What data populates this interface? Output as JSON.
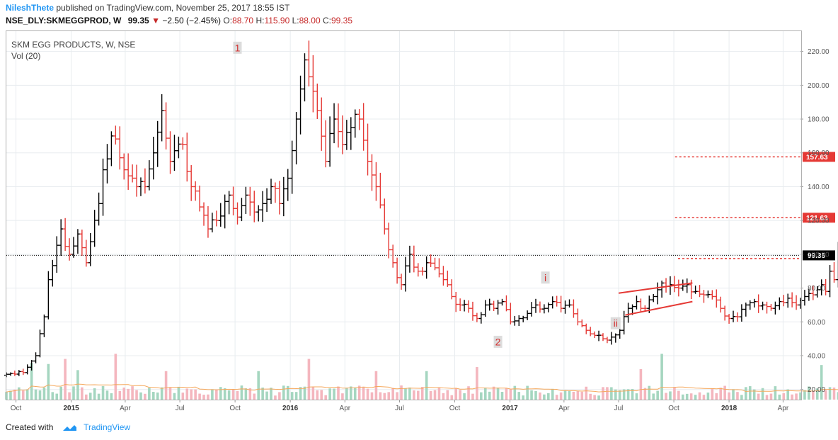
{
  "header": {
    "author": "NileshThete",
    "published_text": " published on TradingView.com, November 25, 2017 18:55 IST",
    "symbol": "NSE_DLY:SKMEGGPROD, W",
    "price": "99.35",
    "change": "−2.50 (−2.45%)",
    "open_label": "O:",
    "open": "88.70",
    "high_label": "H:",
    "high": "115.90",
    "low_label": "L:",
    "low": "88.00",
    "close_label": "C:",
    "close": "99.35"
  },
  "legend": {
    "title": "SKM EGG PRODUCTS, W, NSE",
    "volume": "Vol (20)"
  },
  "footer": {
    "created_with": "Created with",
    "brand": "TradingView"
  },
  "colors": {
    "up": "#000000",
    "down": "#e53935",
    "vol_up": "#a5d6c0",
    "vol_down": "#f4b6be",
    "grid": "#e8ecef",
    "level_line": "#e53935",
    "label_bg": "#e53935",
    "price_label_bg": "#000000"
  },
  "chart_data": {
    "type": "ohlc",
    "interval": "weekly",
    "y_range": [
      14,
      232
    ],
    "y_ticks": [
      "20.00",
      "40.00",
      "60.00",
      "80.00",
      "100.00",
      "120.00",
      "140.00",
      "160.00",
      "180.00",
      "200.00",
      "220.00"
    ],
    "x_range": [
      "2014-09-15",
      "2018-04-30"
    ],
    "x_ticks": [
      {
        "label": "Oct",
        "date": "2014-10-01",
        "bold": false
      },
      {
        "label": "2015",
        "date": "2015-01-01",
        "bold": true
      },
      {
        "label": "Apr",
        "date": "2015-04-01",
        "bold": false
      },
      {
        "label": "Jul",
        "date": "2015-07-01",
        "bold": false
      },
      {
        "label": "Oct",
        "date": "2015-10-01",
        "bold": false
      },
      {
        "label": "2016",
        "date": "2016-01-01",
        "bold": true
      },
      {
        "label": "Apr",
        "date": "2016-04-01",
        "bold": false
      },
      {
        "label": "Jul",
        "date": "2016-07-01",
        "bold": false
      },
      {
        "label": "Oct",
        "date": "2016-10-01",
        "bold": false
      },
      {
        "label": "2017",
        "date": "2017-01-01",
        "bold": true
      },
      {
        "label": "Apr",
        "date": "2017-04-01",
        "bold": false
      },
      {
        "label": "Jul",
        "date": "2017-07-01",
        "bold": false
      },
      {
        "label": "Oct",
        "date": "2017-10-01",
        "bold": false
      },
      {
        "label": "2018",
        "date": "2018-01-01",
        "bold": true
      },
      {
        "label": "Apr",
        "date": "2018-04-01",
        "bold": false
      }
    ],
    "first_bar_date": "2014-09-15",
    "anchors": [
      {
        "w": 0,
        "c": 29
      },
      {
        "w": 4,
        "c": 30
      },
      {
        "w": 7,
        "c": 40
      },
      {
        "w": 9,
        "c": 63
      },
      {
        "w": 10,
        "c": 85
      },
      {
        "w": 13,
        "c": 115
      },
      {
        "w": 15,
        "c": 100
      },
      {
        "w": 17,
        "c": 112
      },
      {
        "w": 19,
        "c": 95
      },
      {
        "w": 22,
        "c": 130
      },
      {
        "w": 23,
        "c": 150
      },
      {
        "w": 25,
        "c": 170
      },
      {
        "w": 28,
        "c": 150
      },
      {
        "w": 31,
        "c": 140
      },
      {
        "w": 33,
        "c": 140
      },
      {
        "w": 35,
        "c": 160
      },
      {
        "w": 37,
        "c": 185
      },
      {
        "w": 39,
        "c": 155
      },
      {
        "w": 42,
        "c": 165
      },
      {
        "w": 44,
        "c": 140
      },
      {
        "w": 46,
        "c": 128
      },
      {
        "w": 48,
        "c": 115
      },
      {
        "w": 50,
        "c": 120
      },
      {
        "w": 53,
        "c": 135
      },
      {
        "w": 55,
        "c": 122
      },
      {
        "w": 57,
        "c": 135
      },
      {
        "w": 59,
        "c": 125
      },
      {
        "w": 61,
        "c": 130
      },
      {
        "w": 63,
        "c": 140
      },
      {
        "w": 65,
        "c": 130
      },
      {
        "w": 67,
        "c": 145
      },
      {
        "w": 69,
        "c": 180
      },
      {
        "w": 71,
        "c": 215
      },
      {
        "w": 72,
        "c": 205
      },
      {
        "w": 74,
        "c": 185
      },
      {
        "w": 76,
        "c": 155
      },
      {
        "w": 78,
        "c": 180
      },
      {
        "w": 80,
        "c": 165
      },
      {
        "w": 82,
        "c": 175
      },
      {
        "w": 84,
        "c": 180
      },
      {
        "w": 86,
        "c": 155
      },
      {
        "w": 88,
        "c": 140
      },
      {
        "w": 90,
        "c": 115
      },
      {
        "w": 92,
        "c": 95
      },
      {
        "w": 94,
        "c": 82
      },
      {
        "w": 96,
        "c": 100
      },
      {
        "w": 98,
        "c": 90
      },
      {
        "w": 100,
        "c": 95
      },
      {
        "w": 102,
        "c": 92
      },
      {
        "w": 104,
        "c": 85
      },
      {
        "w": 106,
        "c": 75
      },
      {
        "w": 108,
        "c": 70
      },
      {
        "w": 110,
        "c": 68
      },
      {
        "w": 112,
        "c": 62
      },
      {
        "w": 114,
        "c": 70
      },
      {
        "w": 116,
        "c": 68
      },
      {
        "w": 118,
        "c": 72
      },
      {
        "w": 120,
        "c": 60
      },
      {
        "w": 122,
        "c": 62
      },
      {
        "w": 124,
        "c": 65
      },
      {
        "w": 126,
        "c": 70
      },
      {
        "w": 128,
        "c": 68
      },
      {
        "w": 130,
        "c": 72
      },
      {
        "w": 132,
        "c": 68
      },
      {
        "w": 134,
        "c": 70
      },
      {
        "w": 136,
        "c": 60
      },
      {
        "w": 138,
        "c": 55
      },
      {
        "w": 140,
        "c": 52
      },
      {
        "w": 142,
        "c": 50
      },
      {
        "w": 144,
        "c": 51
      },
      {
        "w": 146,
        "c": 55
      },
      {
        "w": 148,
        "c": 68
      },
      {
        "w": 150,
        "c": 72
      },
      {
        "w": 152,
        "c": 68
      },
      {
        "w": 154,
        "c": 75
      },
      {
        "w": 156,
        "c": 83
      },
      {
        "w": 158,
        "c": 82
      },
      {
        "w": 160,
        "c": 80
      },
      {
        "w": 162,
        "c": 82
      },
      {
        "w": 164,
        "c": 78
      },
      {
        "w": 166,
        "c": 76
      },
      {
        "w": 168,
        "c": 75
      },
      {
        "w": 170,
        "c": 68
      },
      {
        "w": 172,
        "c": 62
      },
      {
        "w": 174,
        "c": 63
      },
      {
        "w": 176,
        "c": 70
      },
      {
        "w": 178,
        "c": 72
      },
      {
        "w": 180,
        "c": 70
      },
      {
        "w": 182,
        "c": 68
      },
      {
        "w": 184,
        "c": 72
      },
      {
        "w": 186,
        "c": 74
      },
      {
        "w": 188,
        "c": 70
      },
      {
        "w": 190,
        "c": 75
      },
      {
        "w": 192,
        "c": 76
      },
      {
        "w": 194,
        "c": 82
      },
      {
        "w": 195,
        "c": 78
      },
      {
        "w": 196,
        "c": 90
      },
      {
        "w": 197,
        "c": 85
      },
      {
        "w": 198,
        "c": 101.85
      },
      {
        "w": 199,
        "c": 99.35
      }
    ],
    "last_bar": {
      "open": 88.7,
      "high": 115.9,
      "low": 88.0,
      "close": 99.35
    },
    "volume_spikes": [
      {
        "w": 6,
        "v": 36
      },
      {
        "w": 10,
        "v": 35
      },
      {
        "w": 14,
        "v": 40
      },
      {
        "w": 17,
        "v": 29
      },
      {
        "w": 26,
        "v": 45
      },
      {
        "w": 38,
        "v": 28
      },
      {
        "w": 60,
        "v": 28
      },
      {
        "w": 72,
        "v": 40
      },
      {
        "w": 88,
        "v": 28
      },
      {
        "w": 100,
        "v": 28
      },
      {
        "w": 112,
        "v": 32
      },
      {
        "w": 151,
        "v": 30
      },
      {
        "w": 156,
        "v": 45
      },
      {
        "w": 194,
        "v": 34
      },
      {
        "w": 199,
        "v": 94
      }
    ],
    "volume_max": 94,
    "levels": [
      {
        "price": 157.63,
        "label": "157.63",
        "from_date": "2017-10-03"
      },
      {
        "price": 121.63,
        "label": "121.63",
        "from_date": "2017-10-03"
      },
      {
        "price": 97.5,
        "label": "",
        "from_date": "2017-10-08"
      }
    ],
    "last_price": {
      "price": 99.35,
      "label": "99.35"
    },
    "annotations": [
      {
        "text": "1",
        "date": "2015-10-05",
        "price": 222
      },
      {
        "text": "2",
        "date": "2016-12-12",
        "price": 48
      },
      {
        "text": "i",
        "date": "2017-03-01",
        "price": 86
      },
      {
        "text": "ii",
        "date": "2017-06-26",
        "price": 59
      }
    ],
    "triangle": {
      "upper": [
        {
          "date": "2017-07-01",
          "price": 77
        },
        {
          "date": "2017-11-01",
          "price": 83
        }
      ],
      "lower": [
        {
          "date": "2017-07-12",
          "price": 64
        },
        {
          "date": "2017-11-01",
          "price": 72
        }
      ]
    }
  }
}
